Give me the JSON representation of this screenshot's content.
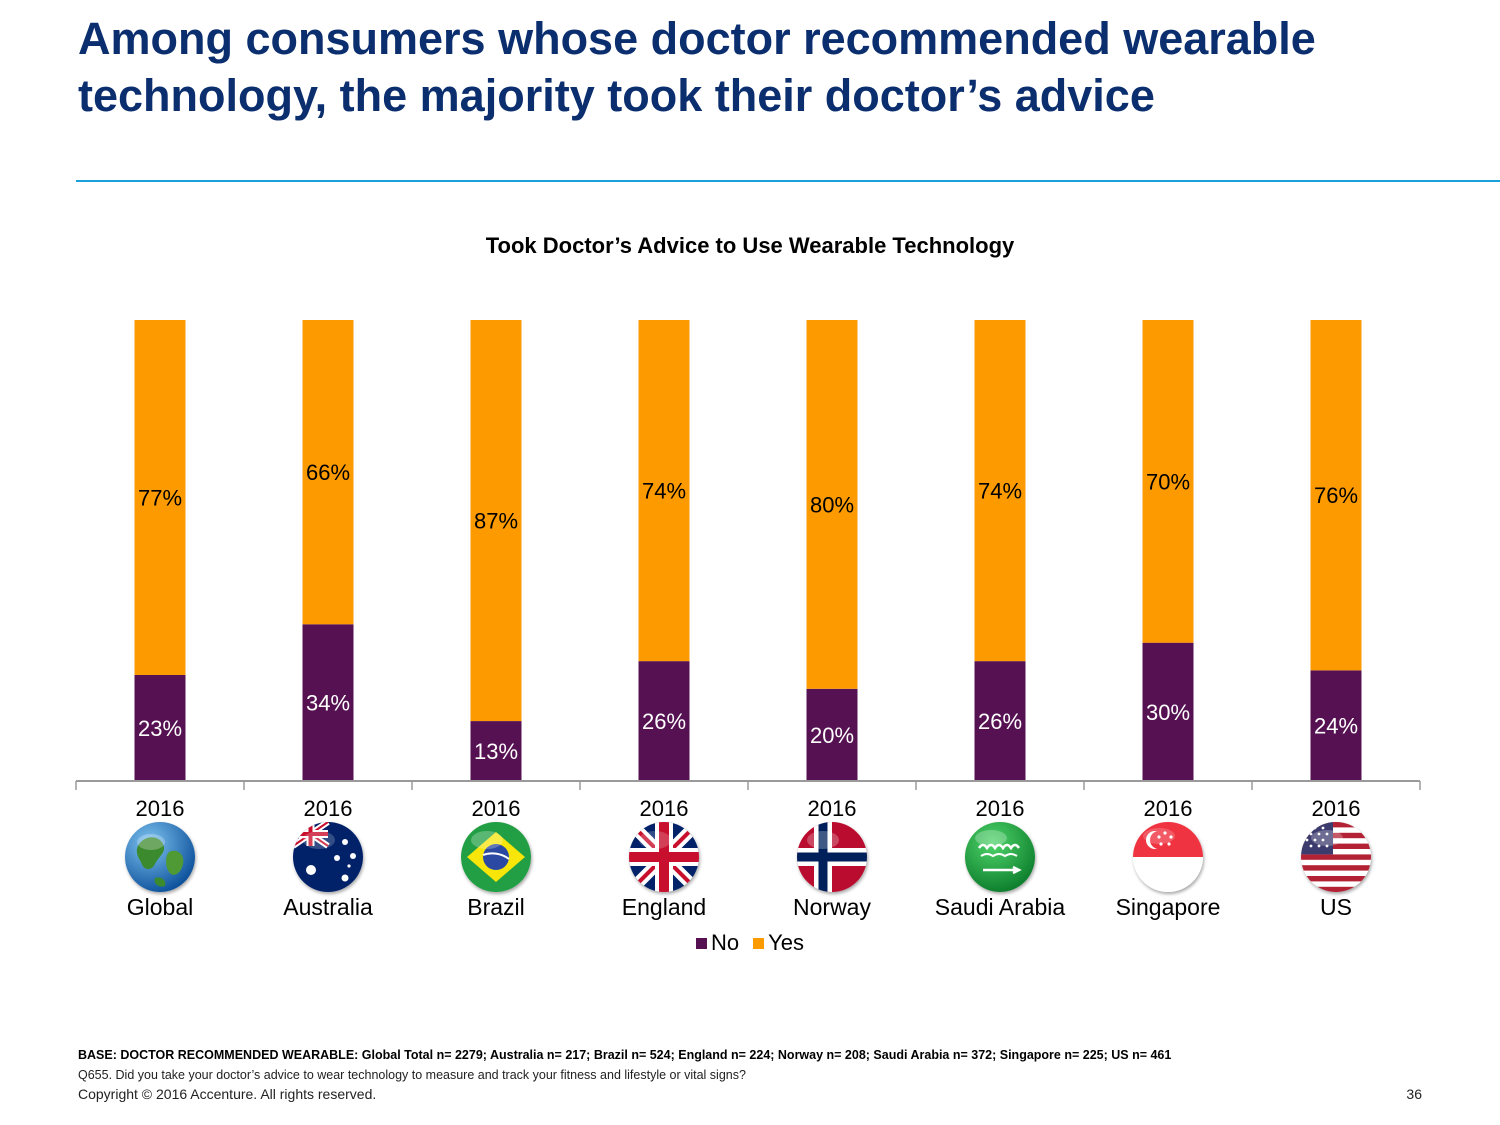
{
  "slide": {
    "title": "Among consumers whose doctor recommended wearable technology, the majority took their doctor’s advice",
    "page_number": "36"
  },
  "footnotes": {
    "base": "BASE: DOCTOR RECOMMENDED WEARABLE: Global Total n= 2279; Australia n= 217; Brazil n= 524; England n= 224; Norway n= 208; Saudi Arabia  n= 372; Singapore n= 225; US n= 461",
    "question": "Q655.  Did you take your doctor’s advice to wear technology to measure and track your fitness and lifestyle or vital signs?",
    "copyright": "Copyright © 2016 Accenture. All rights reserved."
  },
  "chart_data": {
    "type": "bar",
    "stacked": true,
    "title": "Took Doctor’s Advice to Use Wearable Technology",
    "categories": [
      "2016",
      "2016",
      "2016",
      "2016",
      "2016",
      "2016",
      "2016",
      "2016"
    ],
    "groups": [
      "Global",
      "Australia",
      "Brazil",
      "England",
      "Norway",
      "Saudi Arabia",
      "Singapore",
      "US"
    ],
    "flags": [
      "globe-icon",
      "australia-flag-icon",
      "brazil-flag-icon",
      "england-flag-icon",
      "norway-flag-icon",
      "saudi-arabia-flag-icon",
      "singapore-flag-icon",
      "us-flag-icon"
    ],
    "series": [
      {
        "name": "No",
        "color": "#561152",
        "values": [
          23,
          34,
          13,
          26,
          20,
          26,
          30,
          24
        ]
      },
      {
        "name": "Yes",
        "color": "#fd9a00",
        "values": [
          77,
          66,
          87,
          74,
          80,
          74,
          70,
          76
        ]
      }
    ],
    "value_suffix": "%",
    "ylim": [
      0,
      100
    ],
    "legend": "bottom-center",
    "grid": false
  }
}
